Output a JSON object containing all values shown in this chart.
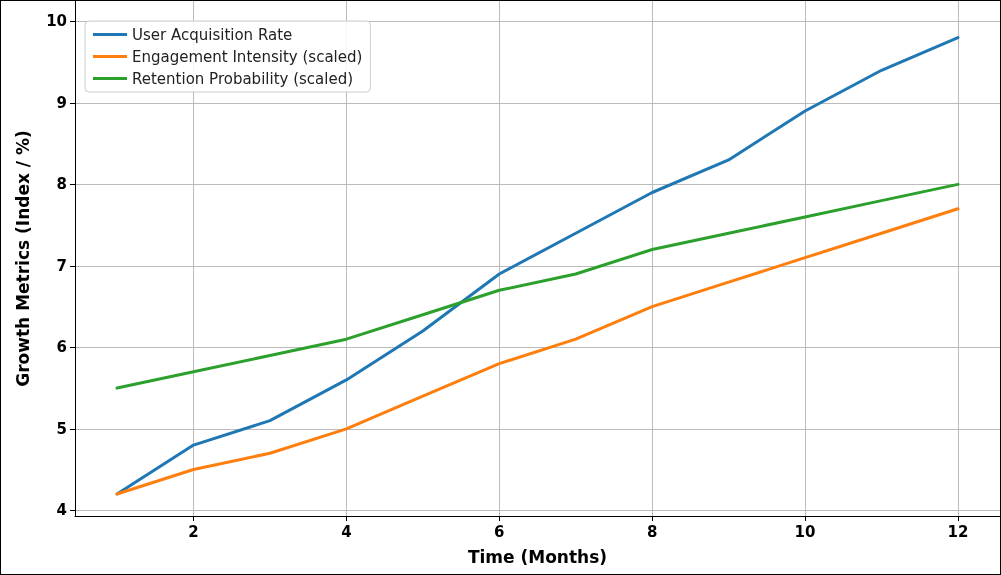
{
  "chart_data": {
    "type": "line",
    "xlabel": "Time (Months)",
    "ylabel": "Growth Metrics (Index / %)",
    "x": [
      1,
      2,
      3,
      4,
      5,
      6,
      7,
      8,
      9,
      10,
      11,
      12
    ],
    "series": [
      {
        "name": "User Acquisition Rate",
        "color": "#1f77b4",
        "values": [
          4.2,
          4.8,
          5.1,
          5.6,
          6.2,
          6.9,
          7.4,
          7.9,
          8.3,
          8.9,
          9.4,
          9.8
        ]
      },
      {
        "name": "Engagement Intensity (scaled)",
        "color": "#ff7f0e",
        "values": [
          4.2,
          4.5,
          4.7,
          5.0,
          5.4,
          5.8,
          6.1,
          6.5,
          6.8,
          7.1,
          7.4,
          7.7
        ]
      },
      {
        "name": "Retention Probability (scaled)",
        "color": "#2ca02c",
        "values": [
          5.5,
          5.7,
          5.9,
          6.1,
          6.4,
          6.7,
          6.9,
          7.2,
          7.4,
          7.6,
          7.8,
          8.0
        ]
      }
    ],
    "xlim": [
      0.45,
      12.55
    ],
    "xticks": [
      2,
      4,
      6,
      8,
      10,
      12
    ],
    "ylim": [
      3.93,
      10.25
    ],
    "yticks": [
      4,
      5,
      6,
      7,
      8,
      9,
      10
    ],
    "grid": true,
    "legend": "top left",
    "marker": "none",
    "line_style": "solid"
  }
}
